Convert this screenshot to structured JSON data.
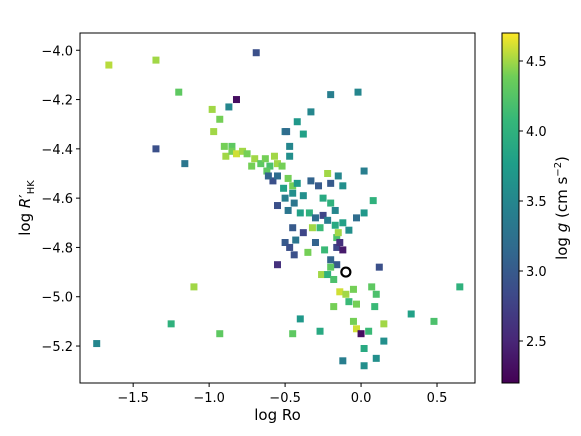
{
  "chart_data": {
    "type": "scatter",
    "xlabel_base": "log Ro",
    "ylabel_prefix": "log ",
    "ylabel_var": "R",
    "ylabel_prime": "′",
    "ylabel_sub": "HK",
    "colorbar_label_prefix": "log ",
    "colorbar_label_var": "g",
    "colorbar_label_unit_open": " (cm s",
    "colorbar_label_unit_sup": "−2",
    "colorbar_label_unit_close": ")",
    "xlim": [
      -1.85,
      0.75
    ],
    "ylim": [
      -5.35,
      -3.93
    ],
    "clim": [
      2.2,
      4.7
    ],
    "x_ticks": [
      -1.5,
      -1.0,
      -0.5,
      0.0,
      0.5
    ],
    "x_tick_labels": [
      "−1.5",
      "−1.0",
      "−0.5",
      "0.0",
      "0.5"
    ],
    "y_ticks": [
      -4.0,
      -4.2,
      -4.4,
      -4.6,
      -4.8,
      -5.0,
      -5.2
    ],
    "y_tick_labels": [
      "−4.0",
      "−4.2",
      "−4.4",
      "−4.6",
      "−4.8",
      "−5.0",
      "−5.2"
    ],
    "c_ticks": [
      2.5,
      3.0,
      3.5,
      4.0,
      4.5
    ],
    "c_tick_labels": [
      "2.5",
      "3.0",
      "3.5",
      "4.0",
      "4.5"
    ],
    "colormap": "viridis",
    "highlight_point": {
      "x": -0.1,
      "y": -4.9
    },
    "points": [
      [
        -1.66,
        -4.06,
        4.55
      ],
      [
        -1.35,
        -4.04,
        4.5
      ],
      [
        -1.2,
        -4.17,
        4.3
      ],
      [
        -0.98,
        -4.24,
        4.5
      ],
      [
        -0.93,
        -4.28,
        4.4
      ],
      [
        -0.87,
        -4.23,
        3.5
      ],
      [
        -0.82,
        -4.2,
        2.3
      ],
      [
        -0.69,
        -4.01,
        2.9
      ],
      [
        -1.35,
        -4.4,
        2.9
      ],
      [
        -1.16,
        -4.46,
        3.3
      ],
      [
        -0.97,
        -4.33,
        4.5
      ],
      [
        -0.9,
        -4.39,
        4.4
      ],
      [
        -0.85,
        -4.39,
        4.3
      ],
      [
        -0.89,
        -4.43,
        4.5
      ],
      [
        -0.85,
        -4.41,
        4.4
      ],
      [
        -0.82,
        -4.42,
        4.6
      ],
      [
        -0.78,
        -4.41,
        4.5
      ],
      [
        -0.75,
        -4.42,
        4.4
      ],
      [
        -0.7,
        -4.44,
        4.5
      ],
      [
        -0.72,
        -4.47,
        4.4
      ],
      [
        -0.66,
        -4.46,
        4.3
      ],
      [
        -0.63,
        -4.44,
        4.4
      ],
      [
        -0.6,
        -4.47,
        4.2
      ],
      [
        -0.57,
        -4.43,
        4.5
      ],
      [
        -0.62,
        -4.49,
        4.3
      ],
      [
        -0.55,
        -4.46,
        4.5
      ],
      [
        -0.52,
        -4.47,
        4.4
      ],
      [
        -0.5,
        -4.33,
        3.3
      ],
      [
        -0.49,
        -4.33,
        3.2
      ],
      [
        -0.42,
        -4.29,
        3.7
      ],
      [
        -0.38,
        -4.34,
        3.8
      ],
      [
        -0.33,
        -4.25,
        3.5
      ],
      [
        -0.2,
        -4.18,
        3.4
      ],
      [
        -0.02,
        -4.17,
        3.5
      ],
      [
        -0.47,
        -4.39,
        3.5
      ],
      [
        -0.47,
        -4.43,
        3.6
      ],
      [
        -0.58,
        -4.53,
        2.9
      ],
      [
        -0.61,
        -4.51,
        3.1
      ],
      [
        -0.55,
        -4.51,
        3.2
      ],
      [
        -0.48,
        -4.52,
        4.4
      ],
      [
        -0.45,
        -4.55,
        4.4
      ],
      [
        -0.51,
        -4.56,
        3.8
      ],
      [
        -0.45,
        -4.58,
        3.6
      ],
      [
        -0.42,
        -4.54,
        3.7
      ],
      [
        -0.55,
        -4.63,
        2.9
      ],
      [
        -0.5,
        -4.6,
        3.4
      ],
      [
        -0.44,
        -4.62,
        3.3
      ],
      [
        -0.38,
        -4.59,
        3.6
      ],
      [
        -0.33,
        -4.53,
        3.1
      ],
      [
        -0.28,
        -4.55,
        3.0
      ],
      [
        -0.22,
        -4.5,
        4.5
      ],
      [
        -0.2,
        -4.54,
        3.0
      ],
      [
        -0.15,
        -4.51,
        3.5
      ],
      [
        -0.12,
        -4.55,
        3.6
      ],
      [
        -0.25,
        -4.6,
        3.9
      ],
      [
        -0.2,
        -4.62,
        4.0
      ],
      [
        -0.17,
        -4.65,
        3.5
      ],
      [
        -0.48,
        -4.65,
        3.3
      ],
      [
        -0.4,
        -4.66,
        3.8
      ],
      [
        -0.34,
        -4.66,
        4.0
      ],
      [
        -0.3,
        -4.68,
        3.2
      ],
      [
        -0.25,
        -4.67,
        2.8
      ],
      [
        -0.22,
        -4.69,
        3.4
      ],
      [
        -0.17,
        -4.71,
        3.9
      ],
      [
        -0.27,
        -4.72,
        4.1
      ],
      [
        -0.32,
        -4.72,
        4.5
      ],
      [
        -0.45,
        -4.72,
        3.0
      ],
      [
        -0.38,
        -4.74,
        2.8
      ],
      [
        -0.43,
        -4.77,
        3.3
      ],
      [
        -0.5,
        -4.78,
        3.0
      ],
      [
        -0.47,
        -4.8,
        2.9
      ],
      [
        -0.3,
        -4.78,
        3.1
      ],
      [
        -0.16,
        -4.76,
        4.2
      ],
      [
        -0.15,
        -4.74,
        4.5
      ],
      [
        -0.12,
        -4.7,
        3.8
      ],
      [
        -0.08,
        -4.73,
        3.6
      ],
      [
        -0.03,
        -4.68,
        3.2
      ],
      [
        0.02,
        -4.66,
        3.7
      ],
      [
        0.08,
        -4.61,
        4.0
      ],
      [
        0.02,
        -4.49,
        3.4
      ],
      [
        -0.44,
        -4.83,
        2.9
      ],
      [
        -0.35,
        -4.82,
        4.4
      ],
      [
        -0.24,
        -4.81,
        4.1
      ],
      [
        -0.2,
        -4.85,
        3.1
      ],
      [
        -0.16,
        -4.8,
        2.8
      ],
      [
        -0.14,
        -4.78,
        2.6
      ],
      [
        -0.12,
        -4.81,
        2.4
      ],
      [
        -0.16,
        -4.87,
        3.0
      ],
      [
        -0.26,
        -4.91,
        4.5
      ],
      [
        -0.22,
        -4.91,
        4.0
      ],
      [
        -0.2,
        -4.88,
        4.3
      ],
      [
        -0.18,
        -4.93,
        4.2
      ],
      [
        -0.55,
        -4.87,
        2.6
      ],
      [
        -0.14,
        -4.98,
        4.6
      ],
      [
        -0.1,
        -4.99,
        4.5
      ],
      [
        -0.05,
        -4.97,
        4.4
      ],
      [
        0.07,
        -4.96,
        4.3
      ],
      [
        0.12,
        -4.88,
        2.9
      ],
      [
        -0.18,
        -5.04,
        4.4
      ],
      [
        -0.08,
        -5.02,
        4.1
      ],
      [
        -0.03,
        -5.03,
        4.4
      ],
      [
        0.1,
        -4.99,
        4.2
      ],
      [
        0.09,
        -5.04,
        4.1
      ],
      [
        -0.4,
        -5.09,
        3.7
      ],
      [
        -0.05,
        -5.1,
        4.4
      ],
      [
        0.05,
        -5.14,
        4.1
      ],
      [
        0.15,
        -5.11,
        4.5
      ],
      [
        0.33,
        -5.07,
        3.8
      ],
      [
        0.48,
        -5.1,
        4.2
      ],
      [
        0.65,
        -4.96,
        4.0
      ],
      [
        -1.1,
        -4.96,
        4.5
      ],
      [
        -1.25,
        -5.11,
        4.0
      ],
      [
        -0.93,
        -5.15,
        4.3
      ],
      [
        -1.74,
        -5.19,
        3.5
      ],
      [
        -0.45,
        -5.15,
        4.3
      ],
      [
        -0.27,
        -5.14,
        3.9
      ],
      [
        -0.03,
        -5.13,
        4.6
      ],
      [
        0.0,
        -5.15,
        2.3
      ],
      [
        0.02,
        -5.21,
        3.9
      ],
      [
        0.1,
        -5.25,
        3.6
      ],
      [
        0.15,
        -5.18,
        3.6
      ],
      [
        -0.12,
        -5.26,
        3.4
      ],
      [
        0.02,
        -5.28,
        3.6
      ]
    ]
  }
}
